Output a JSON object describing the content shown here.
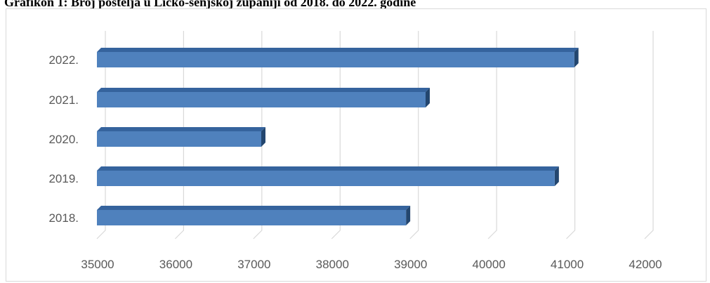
{
  "chart_data": {
    "type": "bar",
    "orientation": "horizontal",
    "title": "Grafikon 1: Broj postelja u Ličko-senjskoj županiji od 2018. do 2022. godine",
    "categories": [
      "2018.",
      "2019.",
      "2020.",
      "2021.",
      "2022."
    ],
    "values": [
      38950,
      40850,
      37100,
      39200,
      41100
    ],
    "xlim": [
      35000,
      42000
    ],
    "x_ticks": [
      "35000",
      "36000",
      "37000",
      "38000",
      "39000",
      "40000",
      "41000",
      "42000"
    ],
    "grid": "vertical",
    "legend": "none",
    "xlabel": "",
    "ylabel": "",
    "colors": {
      "bar_front": "#4f81bd",
      "bar_top": "#35639d",
      "bar_side": "#23466f",
      "grid": "#d9d9d9",
      "label_text": "#595959"
    }
  }
}
